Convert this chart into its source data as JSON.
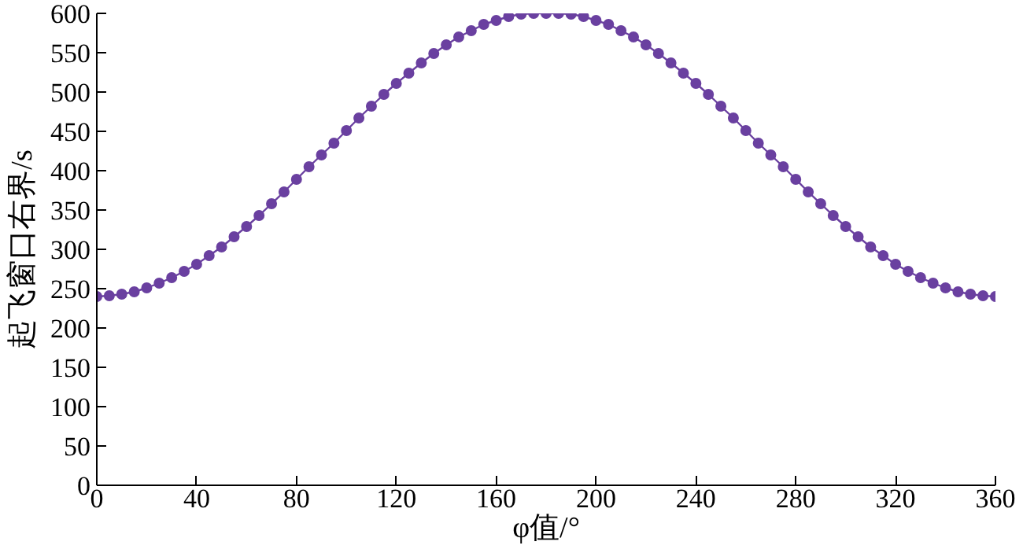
{
  "chart_data": {
    "type": "line",
    "xlabel": "φ值/°",
    "ylabel": "起飞窗口右界/s",
    "marker": "circle",
    "line_style": "solid",
    "grid": false,
    "xlim": [
      0,
      360
    ],
    "ylim": [
      0,
      600
    ],
    "xticks": [
      0,
      40,
      80,
      120,
      160,
      200,
      240,
      280,
      320,
      360
    ],
    "yticks": [
      0,
      50,
      100,
      150,
      200,
      250,
      300,
      350,
      400,
      450,
      500,
      550,
      600
    ],
    "series": [
      {
        "color": "#6a40a0",
        "x": [
          0,
          5,
          10,
          15,
          20,
          25,
          30,
          35,
          40,
          45,
          50,
          55,
          60,
          65,
          70,
          75,
          80,
          85,
          90,
          95,
          100,
          105,
          110,
          115,
          120,
          125,
          130,
          135,
          140,
          145,
          150,
          155,
          160,
          165,
          170,
          175,
          180,
          185,
          190,
          195,
          200,
          205,
          210,
          215,
          220,
          225,
          230,
          235,
          240,
          245,
          250,
          255,
          260,
          265,
          270,
          275,
          280,
          285,
          290,
          295,
          300,
          305,
          310,
          315,
          320,
          325,
          330,
          335,
          340,
          345,
          350,
          355,
          360
        ],
        "values": [
          240,
          241,
          243,
          246,
          251,
          257,
          264,
          272,
          281,
          292,
          303,
          316,
          329,
          343,
          358,
          373,
          389,
          405,
          420,
          435,
          451,
          467,
          482,
          497,
          511,
          524,
          537,
          549,
          560,
          570,
          578,
          586,
          591,
          596,
          599,
          600,
          600,
          600,
          599,
          596,
          591,
          586,
          578,
          570,
          560,
          549,
          537,
          524,
          511,
          497,
          482,
          467,
          451,
          435,
          420,
          405,
          389,
          373,
          358,
          343,
          329,
          316,
          303,
          292,
          281,
          272,
          264,
          257,
          251,
          246,
          243,
          241,
          240
        ]
      }
    ]
  }
}
